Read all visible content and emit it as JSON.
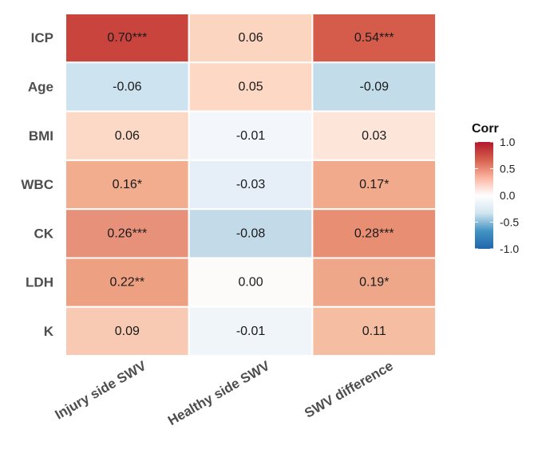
{
  "chart_data": {
    "type": "heatmap",
    "rows": [
      "ICP",
      "Age",
      "BMI",
      "WBC",
      "CK",
      "LDH",
      "K"
    ],
    "columns": [
      "Injury side SWV",
      "Healthy side SWV",
      "SWV difference"
    ],
    "values": [
      [
        0.7,
        0.06,
        0.54
      ],
      [
        -0.06,
        0.05,
        -0.09
      ],
      [
        0.06,
        -0.01,
        0.03
      ],
      [
        0.16,
        -0.03,
        0.17
      ],
      [
        0.26,
        -0.08,
        0.28
      ],
      [
        0.22,
        0.0,
        0.19
      ],
      [
        0.09,
        -0.01,
        0.11
      ]
    ],
    "labels": [
      [
        "0.70***",
        "0.06",
        "0.54***"
      ],
      [
        "-0.06",
        "0.05",
        "-0.09"
      ],
      [
        "0.06",
        "-0.01",
        "0.03"
      ],
      [
        "0.16*",
        "-0.03",
        "0.17*"
      ],
      [
        "0.26***",
        "-0.08",
        "0.28***"
      ],
      [
        "0.22**",
        "0.00",
        "0.19*"
      ],
      [
        "0.09",
        "-0.01",
        "0.11"
      ]
    ],
    "colors": [
      [
        "#c8443d",
        "#fcd5c1",
        "#d55b4a"
      ],
      [
        "#cde3ef",
        "#fcd8c5",
        "#c2dcea"
      ],
      [
        "#fbd9c6",
        "#f3f7fb",
        "#fde5d9"
      ],
      [
        "#f2ad8f",
        "#e6eff7",
        "#f1aa8c"
      ],
      [
        "#e8917a",
        "#c3dbe9",
        "#e88e72"
      ],
      [
        "#eea082",
        "#fdfbfa",
        "#efa789"
      ],
      [
        "#f8cab3",
        "#f0f5fa",
        "#f5bea3"
      ]
    ],
    "legend": {
      "title": "Corr",
      "ticks": [
        "1.0",
        "0.5",
        "0.0",
        "-0.5",
        "-1.0"
      ],
      "range": [
        -1,
        1
      ],
      "placement": "right",
      "gradient": [
        "#2166ac",
        "#4393c3",
        "#d1e5f0",
        "#ffffff",
        "#fbb4a0",
        "#d6604d",
        "#b2182b"
      ]
    }
  }
}
